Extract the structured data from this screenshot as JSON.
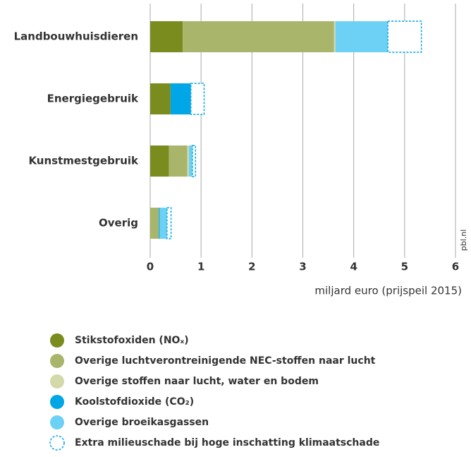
{
  "chart_data": {
    "type": "stacked-barh",
    "categories": [
      "Landbouwhuisdieren",
      "Energiegebruik",
      "Kunstmestgebruik",
      "Overig"
    ],
    "series": [
      {
        "name": "Stikstofoxiden (NOₓ)",
        "color": "#7a8c1e",
        "values": [
          0.64,
          0.4,
          0.37,
          0
        ]
      },
      {
        "name": "Overige luchtverontreinigende NEC-stoffen naar lucht",
        "color": "#a9b56a",
        "values": [
          2.97,
          0,
          0.36,
          0.17
        ]
      },
      {
        "name": "Overige stoffen naar lucht, water en bodem",
        "color": "#d3d9a8",
        "values": [
          0.03,
          0,
          0.03,
          0
        ]
      },
      {
        "name": "Koolstofdioxide (CO₂)",
        "color": "#00a6e6",
        "values": [
          0,
          0.4,
          0,
          0.02
        ]
      },
      {
        "name": "Overige broeikasgassen",
        "color": "#6dd1f5",
        "values": [
          1.03,
          0,
          0.07,
          0.14
        ]
      },
      {
        "name": "Extra milieuschade bij hoge inschatting klimaatschade",
        "color": "#00a6e6",
        "dashed": true,
        "values": [
          0.66,
          0.26,
          0.06,
          0.08
        ]
      }
    ],
    "xlim": [
      0,
      6
    ],
    "xticks": [
      0,
      1,
      2,
      3,
      4,
      5,
      6
    ],
    "grid": true,
    "xlabel": "miljard euro (prijspeil 2015)",
    "source": "pbl.nl"
  }
}
